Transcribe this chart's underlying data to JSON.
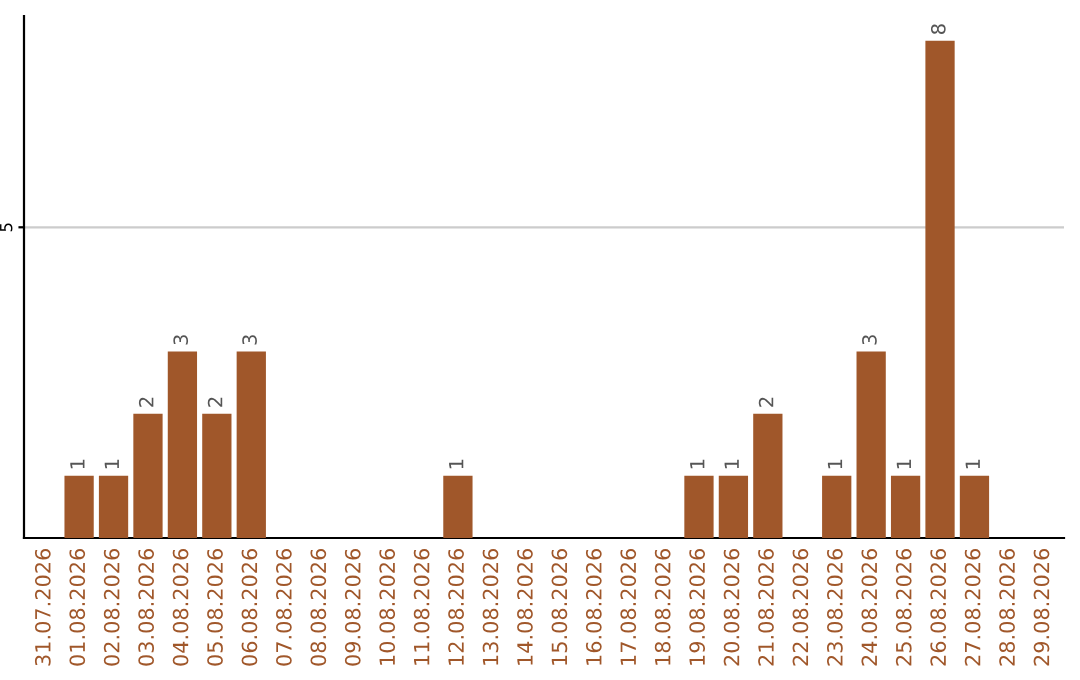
{
  "chart_data": {
    "type": "bar",
    "categories": [
      "31.07.2026",
      "01.08.2026",
      "02.08.2026",
      "03.08.2026",
      "04.08.2026",
      "05.08.2026",
      "06.08.2026",
      "07.08.2026",
      "08.08.2026",
      "09.08.2026",
      "10.08.2026",
      "11.08.2026",
      "12.08.2026",
      "13.08.2026",
      "14.08.2026",
      "15.08.2026",
      "16.08.2026",
      "17.08.2026",
      "18.08.2026",
      "19.08.2026",
      "20.08.2026",
      "21.08.2026",
      "22.08.2026",
      "23.08.2026",
      "24.08.2026",
      "25.08.2026",
      "26.08.2026",
      "27.08.2026",
      "28.08.2026",
      "29.08.2026"
    ],
    "values": [
      0,
      1,
      1,
      2,
      3,
      2,
      3,
      0,
      0,
      0,
      0,
      0,
      1,
      0,
      0,
      0,
      0,
      0,
      0,
      1,
      1,
      2,
      0,
      1,
      3,
      1,
      8,
      1,
      0,
      0
    ],
    "value_labels": [
      null,
      "1",
      "1",
      "2",
      "3",
      "2",
      "3",
      null,
      null,
      null,
      null,
      null,
      "1",
      null,
      null,
      null,
      null,
      null,
      null,
      "1",
      "1",
      "2",
      null,
      "1",
      "3",
      "1",
      "8",
      "1",
      null,
      null
    ],
    "color": "#a0572a",
    "ylim": [
      0,
      8.4
    ],
    "yticks": [
      5
    ],
    "grid": "y"
  }
}
